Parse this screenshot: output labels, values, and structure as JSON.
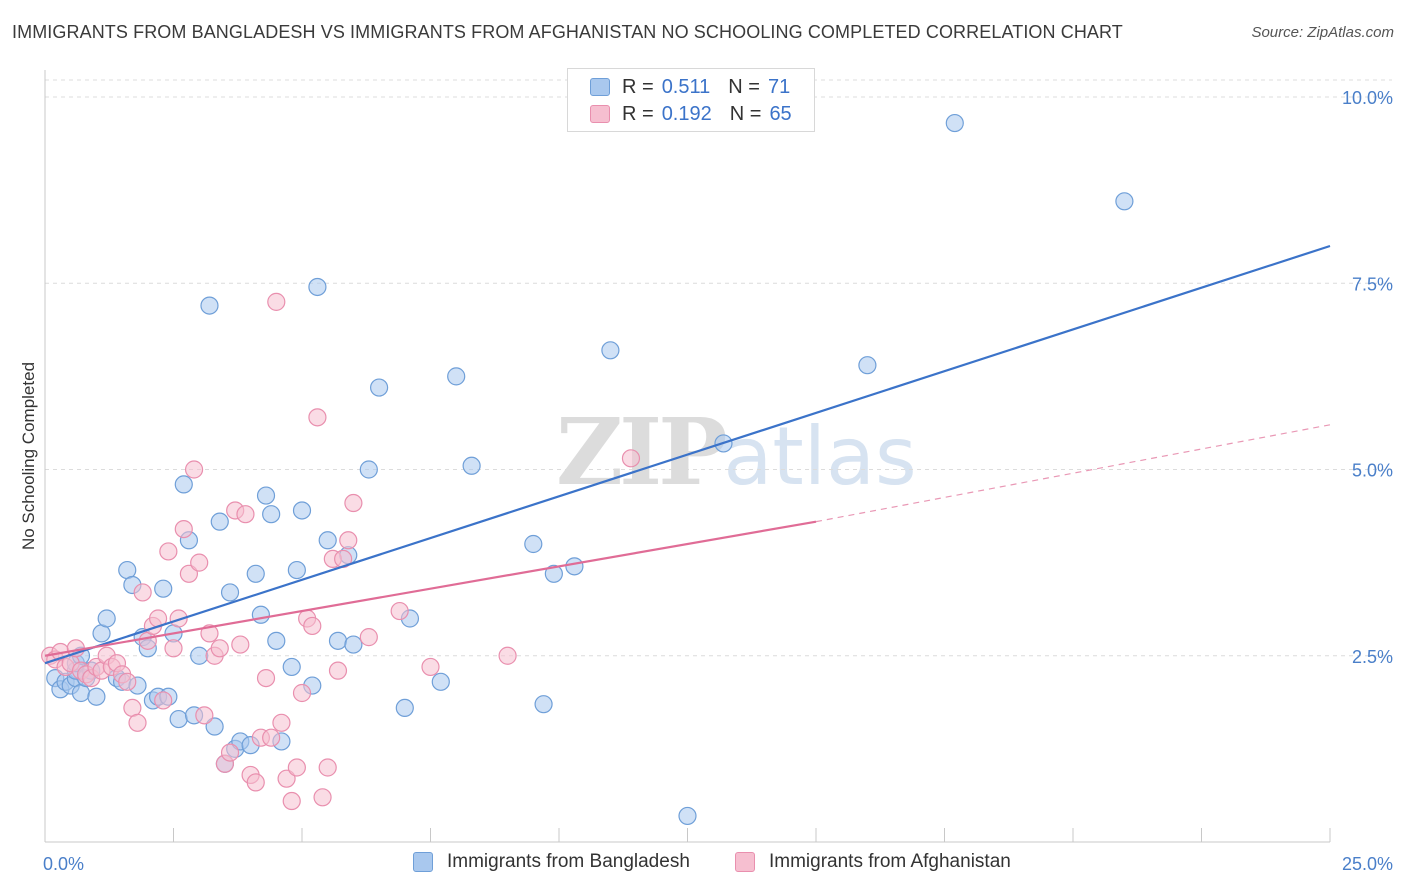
{
  "title": "IMMIGRANTS FROM BANGLADESH VS IMMIGRANTS FROM AFGHANISTAN NO SCHOOLING COMPLETED CORRELATION CHART",
  "source": "Source: ZipAtlas.com",
  "watermark": {
    "zip": "ZIP",
    "atlas": "atlas"
  },
  "legend": {
    "r_label": "R =",
    "n_label": "N =",
    "rows": [
      {
        "r": "0.511",
        "n": "71",
        "color": "#a9c8ee",
        "border": "#6f9fd8"
      },
      {
        "r": "0.192",
        "n": "65",
        "color": "#f6bfd0",
        "border": "#e98fae"
      }
    ]
  },
  "colors": {
    "blue": "#3b73c9",
    "pink": "#e06c96",
    "blue_fill": "#a9c8ee",
    "pink_fill": "#f6bfd0",
    "grid": "#dcdcdc",
    "tick_text": "#4a7fc9"
  },
  "chart_data": {
    "type": "scatter",
    "title": "IMMIGRANTS FROM BANGLADESH VS IMMIGRANTS FROM AFGHANISTAN NO SCHOOLING COMPLETED CORRELATION CHART",
    "xlabel": "",
    "ylabel": "No Schooling Completed",
    "xlim": [
      0,
      25
    ],
    "ylim": [
      0,
      10.5
    ],
    "x_tick_labels": [
      "0.0%",
      "25.0%"
    ],
    "y_ticks": [
      2.5,
      5.0,
      7.5,
      10.0
    ],
    "y_tick_labels": [
      "2.5%",
      "5.0%",
      "7.5%",
      "10.0%"
    ],
    "grid": true,
    "legend_position": "top-center",
    "series": [
      {
        "name": "Immigrants from Bangladesh",
        "color": "#3b73c9",
        "trend": {
          "x": [
            0,
            25
          ],
          "y": [
            2.4,
            8.0
          ],
          "style": "solid"
        },
        "points": [
          [
            0.2,
            2.2
          ],
          [
            0.3,
            2.05
          ],
          [
            0.4,
            2.15
          ],
          [
            0.5,
            2.1
          ],
          [
            0.6,
            2.2
          ],
          [
            0.6,
            2.3
          ],
          [
            0.6,
            2.4
          ],
          [
            0.7,
            2.0
          ],
          [
            0.7,
            2.5
          ],
          [
            0.8,
            2.2
          ],
          [
            0.9,
            2.3
          ],
          [
            1.0,
            1.95
          ],
          [
            1.1,
            2.8
          ],
          [
            1.2,
            3.0
          ],
          [
            1.4,
            2.2
          ],
          [
            1.5,
            2.15
          ],
          [
            1.6,
            3.65
          ],
          [
            1.7,
            3.45
          ],
          [
            1.8,
            2.1
          ],
          [
            1.9,
            2.75
          ],
          [
            2.0,
            2.6
          ],
          [
            2.1,
            1.9
          ],
          [
            2.2,
            1.95
          ],
          [
            2.3,
            3.4
          ],
          [
            2.4,
            1.95
          ],
          [
            2.5,
            2.8
          ],
          [
            2.6,
            1.65
          ],
          [
            2.7,
            4.8
          ],
          [
            2.8,
            4.05
          ],
          [
            2.9,
            1.7
          ],
          [
            3.0,
            2.5
          ],
          [
            3.2,
            7.2
          ],
          [
            3.3,
            1.55
          ],
          [
            3.4,
            4.3
          ],
          [
            3.5,
            1.05
          ],
          [
            3.6,
            3.35
          ],
          [
            3.7,
            1.25
          ],
          [
            3.8,
            1.35
          ],
          [
            4.0,
            1.3
          ],
          [
            4.1,
            3.6
          ],
          [
            4.2,
            3.05
          ],
          [
            4.3,
            4.65
          ],
          [
            4.4,
            4.4
          ],
          [
            4.5,
            2.7
          ],
          [
            4.6,
            1.35
          ],
          [
            4.8,
            2.35
          ],
          [
            4.9,
            3.65
          ],
          [
            5.0,
            4.45
          ],
          [
            5.2,
            2.1
          ],
          [
            5.3,
            7.45
          ],
          [
            5.5,
            4.05
          ],
          [
            5.7,
            2.7
          ],
          [
            5.9,
            3.85
          ],
          [
            6.0,
            2.65
          ],
          [
            6.3,
            5.0
          ],
          [
            6.5,
            6.1
          ],
          [
            7.0,
            1.8
          ],
          [
            7.1,
            3.0
          ],
          [
            7.7,
            2.15
          ],
          [
            8.0,
            6.25
          ],
          [
            8.3,
            5.05
          ],
          [
            9.5,
            4.0
          ],
          [
            9.7,
            1.85
          ],
          [
            9.9,
            3.6
          ],
          [
            10.3,
            3.7
          ],
          [
            11.0,
            6.6
          ],
          [
            12.5,
            0.35
          ],
          [
            13.2,
            5.35
          ],
          [
            16.0,
            6.4
          ],
          [
            17.7,
            9.65
          ],
          [
            21.0,
            8.6
          ]
        ]
      },
      {
        "name": "Immigrants from Afghanistan",
        "color": "#e06c96",
        "trend": {
          "x": [
            0,
            15
          ],
          "y": [
            2.5,
            4.3
          ],
          "style": "solid",
          "extended": {
            "x": [
              15,
              25
            ],
            "y": [
              4.3,
              5.6
            ],
            "style": "dashed"
          }
        },
        "points": [
          [
            0.1,
            2.5
          ],
          [
            0.2,
            2.45
          ],
          [
            0.3,
            2.55
          ],
          [
            0.4,
            2.35
          ],
          [
            0.5,
            2.4
          ],
          [
            0.6,
            2.6
          ],
          [
            0.7,
            2.3
          ],
          [
            0.8,
            2.25
          ],
          [
            0.9,
            2.2
          ],
          [
            1.0,
            2.35
          ],
          [
            1.1,
            2.3
          ],
          [
            1.2,
            2.5
          ],
          [
            1.3,
            2.35
          ],
          [
            1.4,
            2.4
          ],
          [
            1.5,
            2.25
          ],
          [
            1.6,
            2.15
          ],
          [
            1.7,
            1.8
          ],
          [
            1.8,
            1.6
          ],
          [
            1.9,
            3.35
          ],
          [
            2.0,
            2.7
          ],
          [
            2.1,
            2.9
          ],
          [
            2.2,
            3.0
          ],
          [
            2.3,
            1.9
          ],
          [
            2.4,
            3.9
          ],
          [
            2.5,
            2.6
          ],
          [
            2.6,
            3.0
          ],
          [
            2.7,
            4.2
          ],
          [
            2.8,
            3.6
          ],
          [
            2.9,
            5.0
          ],
          [
            3.0,
            3.75
          ],
          [
            3.1,
            1.7
          ],
          [
            3.2,
            2.8
          ],
          [
            3.3,
            2.5
          ],
          [
            3.4,
            2.6
          ],
          [
            3.5,
            1.05
          ],
          [
            3.6,
            1.2
          ],
          [
            3.7,
            4.45
          ],
          [
            3.8,
            2.65
          ],
          [
            3.9,
            4.4
          ],
          [
            4.0,
            0.9
          ],
          [
            4.1,
            0.8
          ],
          [
            4.2,
            1.4
          ],
          [
            4.3,
            2.2
          ],
          [
            4.4,
            1.4
          ],
          [
            4.5,
            7.25
          ],
          [
            4.6,
            1.6
          ],
          [
            4.7,
            0.85
          ],
          [
            4.8,
            0.55
          ],
          [
            4.9,
            1.0
          ],
          [
            5.0,
            2.0
          ],
          [
            5.1,
            3.0
          ],
          [
            5.2,
            2.9
          ],
          [
            5.3,
            5.7
          ],
          [
            5.4,
            0.6
          ],
          [
            5.5,
            1.0
          ],
          [
            5.6,
            3.8
          ],
          [
            5.7,
            2.3
          ],
          [
            5.8,
            3.8
          ],
          [
            5.9,
            4.05
          ],
          [
            6.0,
            4.55
          ],
          [
            6.3,
            2.75
          ],
          [
            6.9,
            3.1
          ],
          [
            7.5,
            2.35
          ],
          [
            9.0,
            2.5
          ],
          [
            11.4,
            5.15
          ]
        ]
      }
    ]
  },
  "bottom_legend": [
    {
      "label": "Immigrants from Bangladesh",
      "color": "#a9c8ee",
      "border": "#6f9fd8"
    },
    {
      "label": "Immigrants from Afghanistan",
      "color": "#f6bfd0",
      "border": "#e98fae"
    }
  ]
}
